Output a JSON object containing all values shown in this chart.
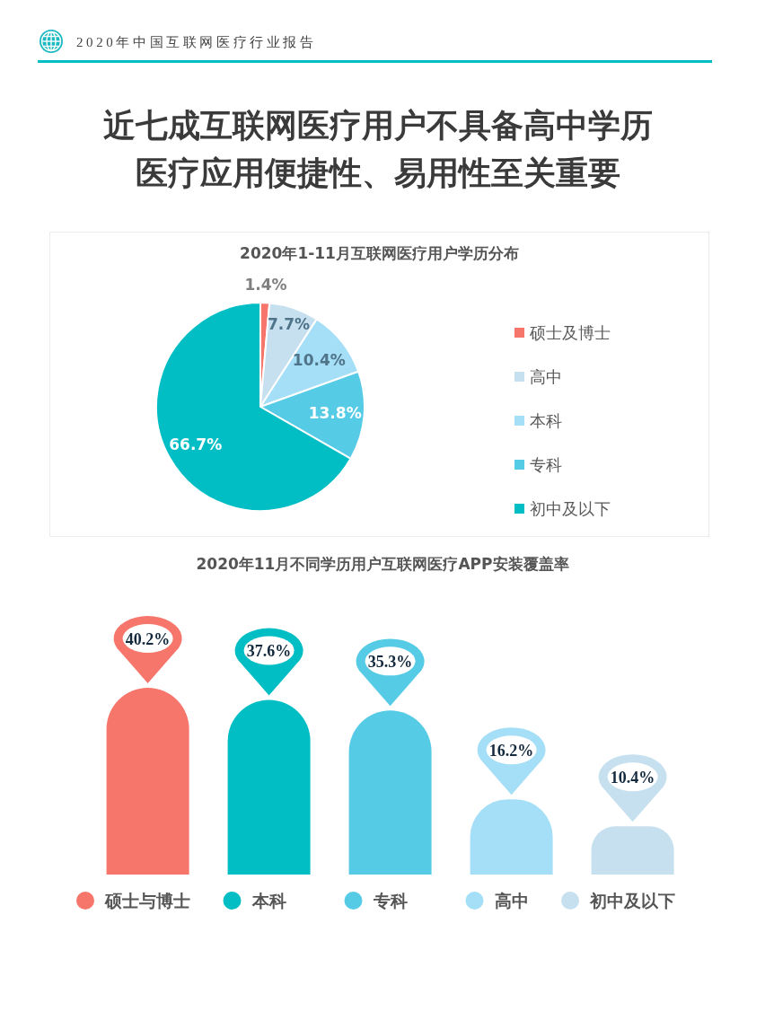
{
  "chart_data": [
    {
      "type": "other",
      "title": "近七成互联网医疗用户不具备高中学历",
      "subtitle": "医疗应用便捷性、易用性至关重要",
      "annotations": [
        "2020年中国互联网医疗行业报告"
      ]
    },
    {
      "type": "pie",
      "title": "2020年1-11月互联网医疗用户学历分布",
      "categories": [
        "硕士及博士",
        "高中",
        "本科",
        "专科",
        "初中及以下"
      ],
      "values": [
        1.4,
        7.7,
        10.4,
        13.8,
        66.7
      ],
      "colors": [
        "#f7766c",
        "#c6e0ef",
        "#a5dff7",
        "#56cbe6",
        "#00bec4"
      ],
      "value_labels": [
        "1.4%",
        "7.7%",
        "10.4%",
        "13.8%",
        "66.7%"
      ],
      "legend": "right"
    },
    {
      "type": "bar",
      "title": "2020年11月不同学历用户互联网医疗APP安装覆盖率",
      "categories": [
        "硕士与博士",
        "本科",
        "专科",
        "高中",
        "初中及以下"
      ],
      "values": [
        40.2,
        37.6,
        35.3,
        16.2,
        10.4
      ],
      "colors": [
        "#f7766c",
        "#00bec4",
        "#56cbe6",
        "#a5dff7",
        "#c6e0ef"
      ],
      "value_labels": [
        "40.2%",
        "37.6%",
        "35.3%",
        "16.2%",
        "10.4%"
      ],
      "tick_labels": "x"
    }
  ]
}
